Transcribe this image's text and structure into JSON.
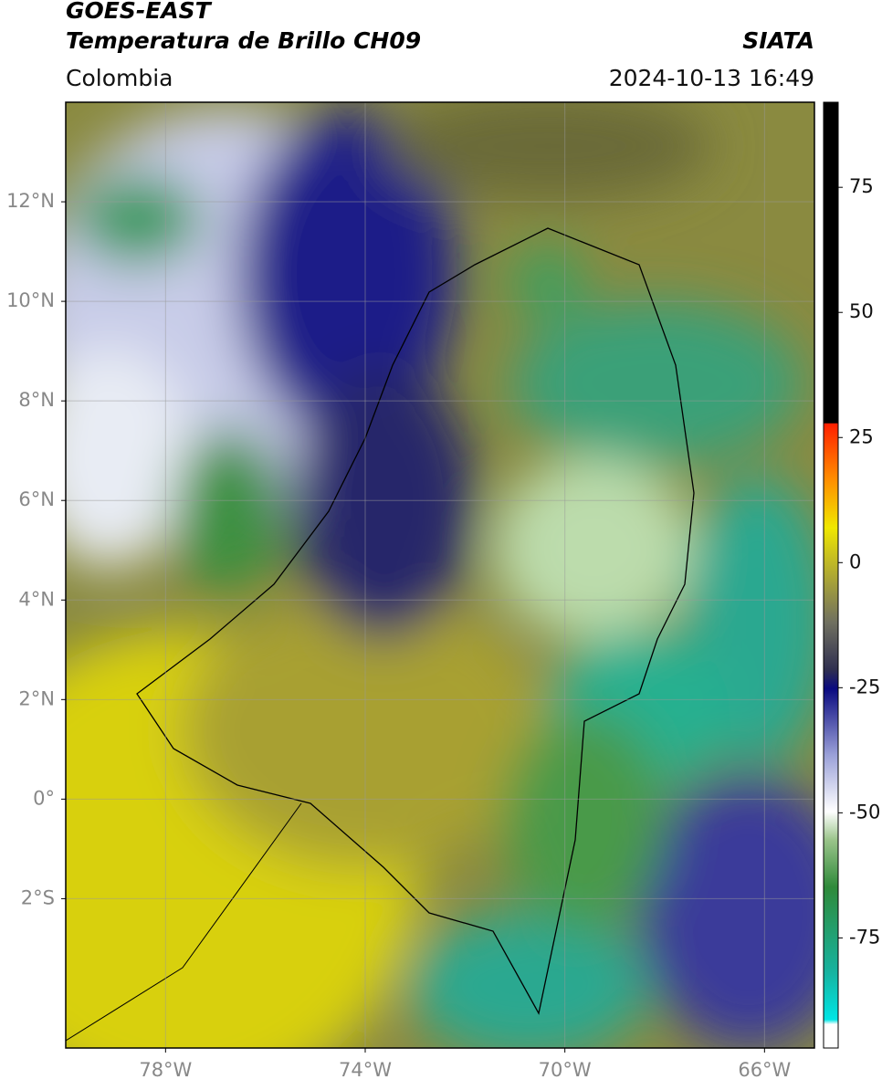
{
  "header": {
    "title": "GOES-EAST",
    "subtitle": "Temperatura de Brillo CH09",
    "source": "SIATA",
    "region": "Colombia",
    "datetime": "2024-10-13 16:49"
  },
  "map": {
    "lon_lim": [
      -80,
      -65
    ],
    "lat_lim": [
      -5,
      14
    ],
    "lat_ticks": [
      {
        "value": 12,
        "label": "12°N"
      },
      {
        "value": 10,
        "label": "10°N"
      },
      {
        "value": 8,
        "label": "8°N"
      },
      {
        "value": 6,
        "label": "6°N"
      },
      {
        "value": 4,
        "label": "4°N"
      },
      {
        "value": 2,
        "label": "2°N"
      },
      {
        "value": 0,
        "label": "0°"
      },
      {
        "value": -2,
        "label": "2°S"
      }
    ],
    "lon_ticks": [
      {
        "value": -78,
        "label": "78°W"
      },
      {
        "value": -74,
        "label": "74°W"
      },
      {
        "value": -70,
        "label": "70°W"
      },
      {
        "value": -66,
        "label": "66°W"
      }
    ],
    "grid": true
  },
  "colorbar": {
    "lim": [
      -97,
      92
    ],
    "ticks": [
      75,
      50,
      25,
      0,
      -25,
      -50,
      -75
    ]
  }
}
